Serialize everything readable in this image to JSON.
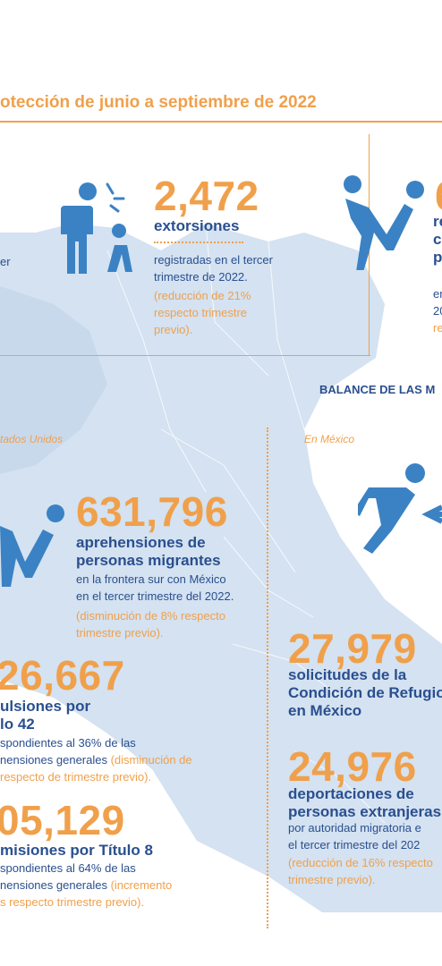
{
  "header": {
    "title": "otección de junio a septiembre de 2022"
  },
  "left_clip": {
    "text": "er"
  },
  "extorsiones": {
    "value": "2,472",
    "label": "extorsiones",
    "line1": "registradas en el tercer",
    "line2": "trimestre de 2022.",
    "note1": "(reducción de 21%",
    "note2": "respecto trimestre",
    "note3": "previo)."
  },
  "right_clip": {
    "value": "6",
    "l1": "re",
    "l2": "c",
    "l3": "p",
    "t1": "er",
    "t2": "20",
    "t3": "re"
  },
  "section": {
    "title": "BALANCE DE LAS M",
    "us_label": "tados Unidos",
    "mx_label": "En México"
  },
  "aprehensiones": {
    "value": "631,796",
    "label1": "aprehensiones de",
    "label2": "personas migrantes",
    "line1": "en la frontera sur con México",
    "line2": "en el tercer trimestre del 2022.",
    "note1": "(disminución de 8% respecto",
    "note2": "trimestre previo)."
  },
  "expulsiones": {
    "value": "26,667",
    "label1": "ulsiones por",
    "label2": "lo 42",
    "line1": "spondientes al 36% de las",
    "line2a": "nensiones generales ",
    "line2b": "(disminución de",
    "note": "respecto de trimestre previo)."
  },
  "admisiones": {
    "value": "05,129",
    "label": "misiones por Título 8",
    "line1": "spondientes al 64% de las",
    "line2a": "nensiones generales ",
    "line2b": "(incremento",
    "note": "s respecto trimestre previo)."
  },
  "solicitudes": {
    "value": "27,979",
    "label1": "solicitudes de la",
    "label2": "Condición de Refugio",
    "label3": "en México"
  },
  "deportaciones": {
    "value": "24,976",
    "label1": "deportaciones de",
    "label2": "personas extranjeras",
    "line1": "por autoridad migratoria e",
    "line2": "el tercer trimestre del 202",
    "note1": "(reducción de 16% respecto",
    "note2": "trimestre previo)."
  },
  "colors": {
    "orange": "#f0a04b",
    "blue": "#2a4f8f",
    "icon": "#3b82c4",
    "map": "#d4e2f1"
  },
  "icons": [
    "extortion-icon",
    "apprehension-icon",
    "runner-icon"
  ]
}
